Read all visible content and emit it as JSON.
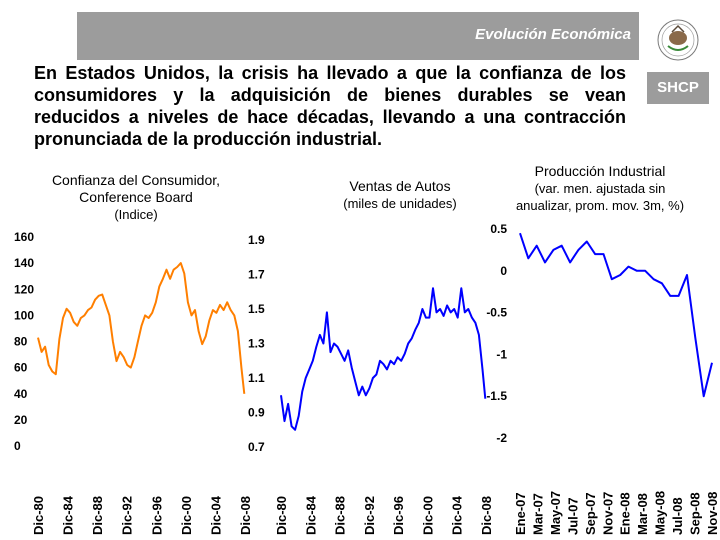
{
  "header": {
    "title": "Evolución Económica",
    "brand": "SHCP",
    "accent_color": "#9c9c9c"
  },
  "headline": "En Estados Unidos, la crisis ha llevado a que la confianza de los consumidores y la adquisición de bienes durables se vean reducidos a niveles de hace décadas, llevando a una contracción pronunciada de la producción industrial.",
  "chart_titles": {
    "confidence": [
      "Confianza del Consumidor,",
      "Conference Board",
      "(Indice)"
    ],
    "autos": [
      "Ventas de Autos",
      "(miles de unidades)"
    ],
    "production": [
      "Producción Industrial",
      "(var. men. ajustada sin",
      "anualizar, prom. mov. 3m, %)"
    ]
  },
  "chart_data": [
    {
      "id": "confidence",
      "type": "line",
      "title": "Confianza del Consumidor, Conference Board (Indice)",
      "color": "#ff7f00",
      "ylim": [
        0,
        160
      ],
      "yticks": [
        0,
        20,
        40,
        60,
        80,
        100,
        120,
        140,
        160
      ],
      "xlim": [
        1980,
        2009
      ],
      "xtick_labels": [
        "Dic-80",
        "Dic-84",
        "Dic-88",
        "Dic-92",
        "Dic-96",
        "Dic-00",
        "Dic-04",
        "Dic-08"
      ],
      "x": [
        1980.0,
        1980.5,
        1981.0,
        1981.5,
        1982.0,
        1982.5,
        1983.0,
        1983.5,
        1984.0,
        1984.5,
        1985.0,
        1985.5,
        1986.0,
        1986.5,
        1987.0,
        1987.5,
        1988.0,
        1988.5,
        1989.0,
        1989.5,
        1990.0,
        1990.5,
        1991.0,
        1991.5,
        1992.0,
        1992.5,
        1993.0,
        1993.5,
        1994.0,
        1994.5,
        1995.0,
        1995.5,
        1996.0,
        1996.5,
        1997.0,
        1997.5,
        1998.0,
        1998.5,
        1999.0,
        1999.5,
        2000.0,
        2000.5,
        2001.0,
        2001.5,
        2002.0,
        2002.5,
        2003.0,
        2003.5,
        2004.0,
        2004.5,
        2005.0,
        2005.5,
        2006.0,
        2006.5,
        2007.0,
        2007.5,
        2008.0,
        2008.5,
        2008.9
      ],
      "values": [
        83,
        72,
        76,
        62,
        57,
        55,
        82,
        98,
        105,
        102,
        95,
        92,
        98,
        100,
        104,
        106,
        112,
        115,
        116,
        108,
        100,
        80,
        65,
        72,
        68,
        62,
        60,
        68,
        80,
        92,
        100,
        98,
        102,
        110,
        122,
        128,
        135,
        128,
        135,
        137,
        140,
        132,
        110,
        100,
        104,
        88,
        78,
        84,
        96,
        104,
        102,
        108,
        104,
        110,
        104,
        100,
        88,
        60,
        40
      ]
    },
    {
      "id": "autos",
      "type": "line",
      "title": "Ventas de Autos (miles de unidades)",
      "color": "#0000ff",
      "ylim": [
        0.7,
        1.9
      ],
      "yticks": [
        0.7,
        0.9,
        1.1,
        1.3,
        1.5,
        1.7,
        1.9
      ],
      "xlim": [
        1980,
        2009
      ],
      "xtick_labels": [
        "Dic-80",
        "Dic-84",
        "Dic-88",
        "Dic-92",
        "Dic-96",
        "Dic-00",
        "Dic-04",
        "Dic-08"
      ],
      "x": [
        1980.0,
        1980.5,
        1981.0,
        1981.5,
        1982.0,
        1982.5,
        1983.0,
        1983.5,
        1984.0,
        1984.5,
        1985.0,
        1985.5,
        1986.0,
        1986.5,
        1987.0,
        1987.5,
        1988.0,
        1988.5,
        1989.0,
        1989.5,
        1990.0,
        1990.5,
        1991.0,
        1991.5,
        1992.0,
        1992.5,
        1993.0,
        1993.5,
        1994.0,
        1994.5,
        1995.0,
        1995.5,
        1996.0,
        1996.5,
        1997.0,
        1997.5,
        1998.0,
        1998.5,
        1999.0,
        1999.5,
        2000.0,
        2000.5,
        2001.0,
        2001.5,
        2002.0,
        2002.5,
        2003.0,
        2003.5,
        2004.0,
        2004.5,
        2005.0,
        2005.5,
        2006.0,
        2006.5,
        2007.0,
        2007.5,
        2008.0,
        2008.5,
        2008.9
      ],
      "values": [
        1.0,
        0.85,
        0.95,
        0.82,
        0.8,
        0.88,
        1.02,
        1.1,
        1.15,
        1.2,
        1.28,
        1.35,
        1.3,
        1.48,
        1.25,
        1.3,
        1.28,
        1.24,
        1.2,
        1.26,
        1.16,
        1.08,
        1.0,
        1.05,
        1.0,
        1.04,
        1.1,
        1.12,
        1.2,
        1.18,
        1.15,
        1.2,
        1.18,
        1.22,
        1.2,
        1.24,
        1.3,
        1.33,
        1.38,
        1.42,
        1.5,
        1.45,
        1.45,
        1.62,
        1.48,
        1.5,
        1.46,
        1.52,
        1.48,
        1.5,
        1.45,
        1.62,
        1.48,
        1.5,
        1.45,
        1.42,
        1.35,
        1.15,
        0.98
      ]
    },
    {
      "id": "production",
      "type": "line",
      "title": "Producción Industrial (var. men. ajustada sin anualizar, prom. mov. 3m, %)",
      "color": "#0000ff",
      "ylim": [
        -2.0,
        0.5
      ],
      "yticks": [
        -2.0,
        -1.5,
        -1.0,
        -0.5,
        0.0,
        0.5
      ],
      "categories": [
        "Ene-07",
        "Mar-07",
        "May-07",
        "Jul-07",
        "Sep-07",
        "Nov-07",
        "Ene-08",
        "Mar-08",
        "May-08",
        "Jul-08",
        "Sep-08",
        "Nov-08"
      ],
      "xtick_labels": [
        "Ene-07",
        "Mar-07",
        "May-07",
        "Jul-07",
        "Sep-07",
        "Nov-07",
        "Ene-08",
        "Mar-08",
        "May-08",
        "Jul-08",
        "Sep-08",
        "Nov-08"
      ],
      "x": [
        0,
        1,
        2,
        3,
        4,
        5,
        6,
        7,
        8,
        9,
        10,
        11,
        12,
        13,
        14,
        15,
        16,
        17,
        18,
        19,
        20,
        21,
        22,
        23
      ],
      "values": [
        0.45,
        0.15,
        0.3,
        0.1,
        0.25,
        0.3,
        0.1,
        0.25,
        0.35,
        0.2,
        0.2,
        -0.1,
        -0.05,
        0.05,
        0.0,
        0.0,
        -0.1,
        -0.15,
        -0.3,
        -0.3,
        -0.05,
        -0.8,
        -1.5,
        -1.1
      ]
    }
  ]
}
